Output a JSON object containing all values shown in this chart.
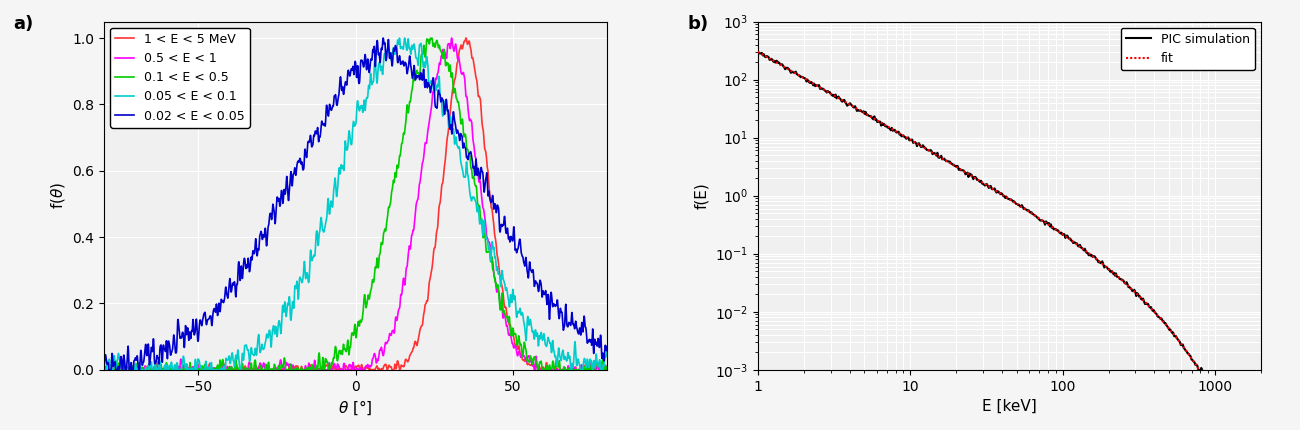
{
  "panel_a_label": "a)",
  "panel_b_label": "b)",
  "theta_xlabel": "$\\theta$ [°]",
  "theta_ylabel": "f($\\theta$)",
  "energy_xlabel": "E [keV]",
  "energy_ylabel": "f(E)",
  "theta_xlim": [
    -80,
    80
  ],
  "theta_ylim": [
    0,
    1.05
  ],
  "theta_yticks": [
    0,
    0.2,
    0.4,
    0.6,
    0.8,
    1
  ],
  "theta_xticks": [
    -50,
    0,
    50
  ],
  "energy_xlim": [
    1,
    2000
  ],
  "energy_ylim": [
    0.001,
    1000.0
  ],
  "curves": [
    {
      "label": "1 < E < 5 MeV",
      "color": "#FF3333",
      "mean": 35,
      "std": 7,
      "noise": 0.02
    },
    {
      "label": "0.5 < E < 1",
      "color": "#FF00FF",
      "mean": 30,
      "std": 9,
      "noise": 0.03
    },
    {
      "label": "0.1 < E < 0.5",
      "color": "#00CC00",
      "mean": 25,
      "std": 12,
      "noise": 0.04
    },
    {
      "label": "0.05 < E < 0.1",
      "color": "#00CCCC",
      "mean": 15,
      "std": 20,
      "noise": 0.05
    },
    {
      "label": "0.02 < E < 0.05",
      "color": "#0000CC",
      "mean": 10,
      "std": 30,
      "noise": 0.06
    }
  ],
  "pic_color": "#000000",
  "fit_color": "#FF0000",
  "legend_a_fontsize": 9,
  "legend_b_fontsize": 9,
  "label_fontsize": 11,
  "tick_fontsize": 10,
  "bg_color": "#f0f0f0",
  "figure_bg": "#f5f5f5"
}
